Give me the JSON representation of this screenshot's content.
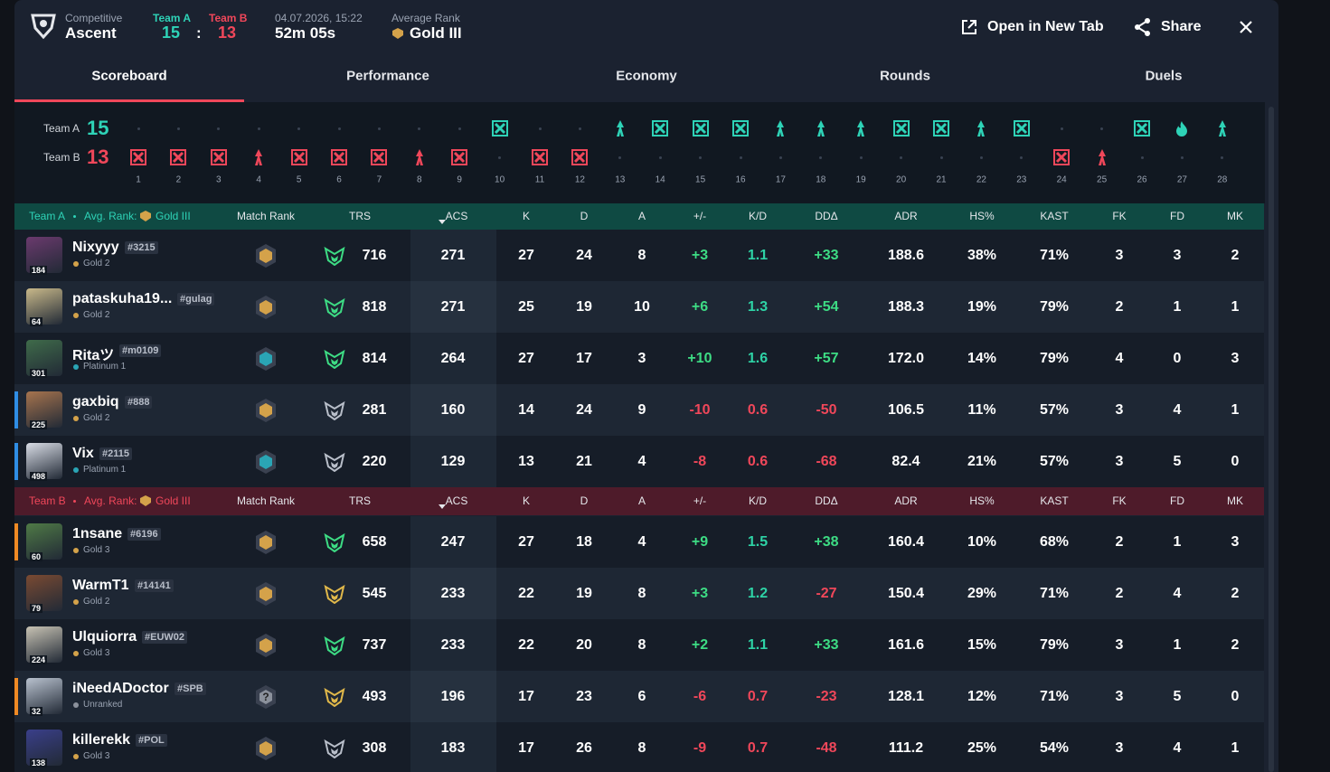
{
  "header": {
    "mode": "Competitive",
    "map": "Ascent",
    "team_a_label": "Team A",
    "team_a_score": 15,
    "separator": ":",
    "team_b_label": "Team B",
    "team_b_score": 13,
    "date": "04.07.2026, 15:22",
    "duration": "52m 05s",
    "avg_rank_label": "Average Rank",
    "avg_rank": "Gold III",
    "actions": [
      "Open in New Tab",
      "Share"
    ]
  },
  "tabs": {
    "items": [
      "Scoreboard",
      "Performance",
      "Economy",
      "Rounds",
      "Duels"
    ],
    "active": 0
  },
  "rounds": {
    "team_a_label": "Team A",
    "team_a_score": 15,
    "team_b_label": "Team B",
    "team_b_score": 13,
    "list": [
      {
        "number": 1,
        "winner": "B",
        "end": "elimination"
      },
      {
        "number": 2,
        "winner": "B",
        "end": "elimination"
      },
      {
        "number": 3,
        "winner": "B",
        "end": "elimination"
      },
      {
        "number": 4,
        "winner": "B",
        "end": "spike"
      },
      {
        "number": 5,
        "winner": "B",
        "end": "elimination"
      },
      {
        "number": 6,
        "winner": "B",
        "end": "elimination"
      },
      {
        "number": 7,
        "winner": "B",
        "end": "elimination"
      },
      {
        "number": 8,
        "winner": "B",
        "end": "spike"
      },
      {
        "number": 9,
        "winner": "B",
        "end": "elimination"
      },
      {
        "number": 10,
        "winner": "A",
        "end": "elimination"
      },
      {
        "number": 11,
        "winner": "B",
        "end": "elimination"
      },
      {
        "number": 12,
        "winner": "B",
        "end": "elimination"
      },
      {
        "number": 13,
        "winner": "A",
        "end": "spike"
      },
      {
        "number": 14,
        "winner": "A",
        "end": "elimination"
      },
      {
        "number": 15,
        "winner": "A",
        "end": "elimination"
      },
      {
        "number": 16,
        "winner": "A",
        "end": "elimination"
      },
      {
        "number": 17,
        "winner": "A",
        "end": "spike"
      },
      {
        "number": 18,
        "winner": "A",
        "end": "spike"
      },
      {
        "number": 19,
        "winner": "A",
        "end": "spike"
      },
      {
        "number": 20,
        "winner": "A",
        "end": "elimination"
      },
      {
        "number": 21,
        "winner": "A",
        "end": "elimination"
      },
      {
        "number": 22,
        "winner": "A",
        "end": "spike"
      },
      {
        "number": 23,
        "winner": "A",
        "end": "elimination"
      },
      {
        "number": 24,
        "winner": "B",
        "end": "elimination"
      },
      {
        "number": 25,
        "winner": "B",
        "end": "spike"
      },
      {
        "number": 26,
        "winner": "A",
        "end": "elimination"
      },
      {
        "number": 27,
        "winner": "A",
        "end": "flame"
      },
      {
        "number": 28,
        "winner": "A",
        "end": "spike"
      }
    ]
  },
  "columns": [
    "Match Rank",
    "TRS",
    "ACS",
    "K",
    "D",
    "A",
    "+/-",
    "K/D",
    "DDΔ",
    "ADR",
    "HS%",
    "KAST",
    "FK",
    "FD",
    "MK"
  ],
  "teams": [
    {
      "name": "Team A",
      "avg_rank_label": "Avg. Rank:",
      "avg_rank": "Gold III",
      "color": "teal",
      "players": [
        {
          "name": "Nixyyy",
          "tag": "#3215",
          "rank": "Gold 2",
          "level": "184",
          "match_rank_tier": "gold",
          "trs_tier": "green",
          "party": "none",
          "stats": [
            "716",
            "271",
            "27",
            "24",
            "8",
            "+3",
            "1.1",
            "+33",
            "188.6",
            "38%",
            "71%",
            "3",
            "3",
            "2"
          ]
        },
        {
          "name": "pataskuha19...",
          "tag": "#gulag",
          "rank": "Gold 2",
          "level": "64",
          "match_rank_tier": "gold",
          "trs_tier": "green",
          "party": "none",
          "stats": [
            "818",
            "271",
            "25",
            "19",
            "10",
            "+6",
            "1.3",
            "+54",
            "188.3",
            "19%",
            "79%",
            "2",
            "1",
            "1"
          ]
        },
        {
          "name": "Ritaツ",
          "tag": "#m0109",
          "rank": "Platinum 1",
          "level": "301",
          "match_rank_tier": "platinum",
          "trs_tier": "green",
          "party": "none",
          "stats": [
            "814",
            "264",
            "27",
            "17",
            "3",
            "+10",
            "1.6",
            "+57",
            "172.0",
            "14%",
            "79%",
            "4",
            "0",
            "3"
          ]
        },
        {
          "name": "gaxbiq",
          "tag": "#888",
          "rank": "Gold 2",
          "level": "225",
          "match_rank_tier": "gold",
          "trs_tier": "gray",
          "party": "blue",
          "stats": [
            "281",
            "160",
            "14",
            "24",
            "9",
            "-10",
            "0.6",
            "-50",
            "106.5",
            "11%",
            "57%",
            "3",
            "4",
            "1"
          ]
        },
        {
          "name": "Vix",
          "tag": "#2115",
          "rank": "Platinum 1",
          "level": "498",
          "match_rank_tier": "platinum",
          "trs_tier": "gray",
          "party": "blue",
          "stats": [
            "220",
            "129",
            "13",
            "21",
            "4",
            "-8",
            "0.6",
            "-68",
            "82.4",
            "21%",
            "57%",
            "3",
            "5",
            "0"
          ]
        }
      ]
    },
    {
      "name": "Team B",
      "avg_rank_label": "Avg. Rank:",
      "avg_rank": "Gold III",
      "color": "red",
      "players": [
        {
          "name": "1nsane",
          "tag": "#6196",
          "rank": "Gold 3",
          "level": "60",
          "match_rank_tier": "gold",
          "trs_tier": "green",
          "party": "orange",
          "stats": [
            "658",
            "247",
            "27",
            "18",
            "4",
            "+9",
            "1.5",
            "+38",
            "160.4",
            "10%",
            "68%",
            "2",
            "1",
            "3"
          ]
        },
        {
          "name": "WarmT1",
          "tag": "#14141",
          "rank": "Gold 2",
          "level": "79",
          "match_rank_tier": "gold",
          "trs_tier": "gold",
          "party": "none",
          "stats": [
            "545",
            "233",
            "22",
            "19",
            "8",
            "+3",
            "1.2",
            "-27",
            "150.4",
            "29%",
            "71%",
            "2",
            "4",
            "2"
          ]
        },
        {
          "name": "Ulquiorra",
          "tag": "#EUW02",
          "rank": "Gold 3",
          "level": "224",
          "match_rank_tier": "gold",
          "trs_tier": "green",
          "party": "none",
          "stats": [
            "737",
            "233",
            "22",
            "20",
            "8",
            "+2",
            "1.1",
            "+33",
            "161.6",
            "15%",
            "79%",
            "3",
            "1",
            "2"
          ]
        },
        {
          "name": "iNeedADoctor",
          "tag": "#SPB",
          "rank": "Unranked",
          "level": "32",
          "match_rank_tier": "unranked",
          "match_rank_label": "?",
          "trs_tier": "gold",
          "party": "orange",
          "stats": [
            "493",
            "196",
            "17",
            "23",
            "6",
            "-6",
            "0.7",
            "-23",
            "128.1",
            "12%",
            "71%",
            "3",
            "5",
            "0"
          ]
        },
        {
          "name": "killerekk",
          "tag": "#POL",
          "rank": "Gold 3",
          "level": "138",
          "match_rank_tier": "gold",
          "trs_tier": "gray",
          "party": "none",
          "stats": [
            "308",
            "183",
            "17",
            "26",
            "8",
            "-9",
            "0.7",
            "-48",
            "111.2",
            "25%",
            "54%",
            "3",
            "4",
            "1"
          ]
        }
      ]
    }
  ]
}
